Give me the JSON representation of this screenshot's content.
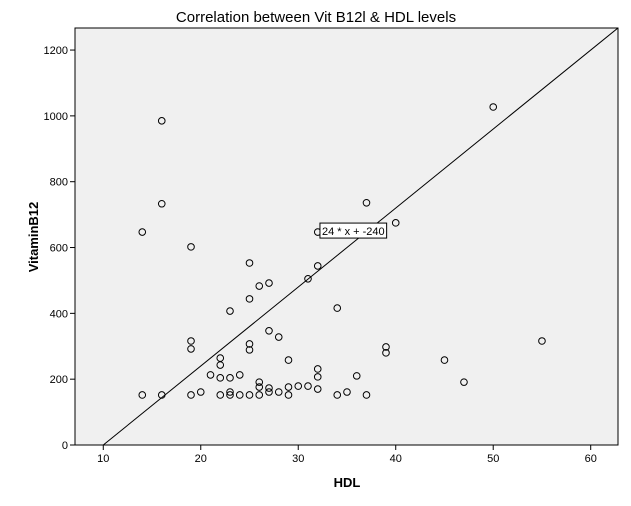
{
  "chart_data": {
    "type": "scatter",
    "title": "Correlation between Vit B12l & HDL levels",
    "x_label": "HDL",
    "y_label": "VitaminB12",
    "xlim": [
      7.1,
      62.8
    ],
    "ylim": [
      0,
      1267
    ],
    "xticks": [
      10,
      20,
      30,
      40,
      50,
      60
    ],
    "yticks": [
      0,
      200,
      400,
      600,
      800,
      1000,
      1200
    ],
    "grid": false,
    "plot_background": "#f0f0f0",
    "series": [
      {
        "name": "VitaminB12",
        "color": "#000000",
        "x": [
          14,
          14,
          16,
          16,
          16,
          19,
          19,
          19,
          19,
          20,
          21,
          22,
          22,
          22,
          22,
          23,
          23,
          23,
          23,
          24,
          24,
          25,
          25,
          25,
          25,
          25,
          26,
          26,
          26,
          26,
          27,
          27,
          27,
          27,
          28,
          28,
          29,
          29,
          29,
          30,
          31,
          31,
          32,
          32,
          32,
          32,
          32,
          34,
          34,
          35,
          36,
          37,
          37,
          39,
          39,
          40,
          45,
          47,
          50,
          55
        ],
        "values": [
          152,
          647,
          985,
          733,
          152,
          602,
          316,
          292,
          152,
          161,
          213,
          264,
          243,
          204,
          152,
          407,
          204,
          161,
          152,
          213,
          152,
          553,
          444,
          307,
          289,
          152,
          483,
          191,
          176,
          152,
          492,
          347,
          173,
          161,
          328,
          161,
          258,
          176,
          152,
          179,
          505,
          179,
          647,
          544,
          231,
          207,
          170,
          416,
          152,
          161,
          210,
          736,
          152,
          298,
          280,
          675,
          258,
          191,
          1027,
          316
        ]
      }
    ],
    "fit_line": {
      "slope": 24,
      "intercept": -240,
      "label": "24 * x + -240"
    }
  }
}
